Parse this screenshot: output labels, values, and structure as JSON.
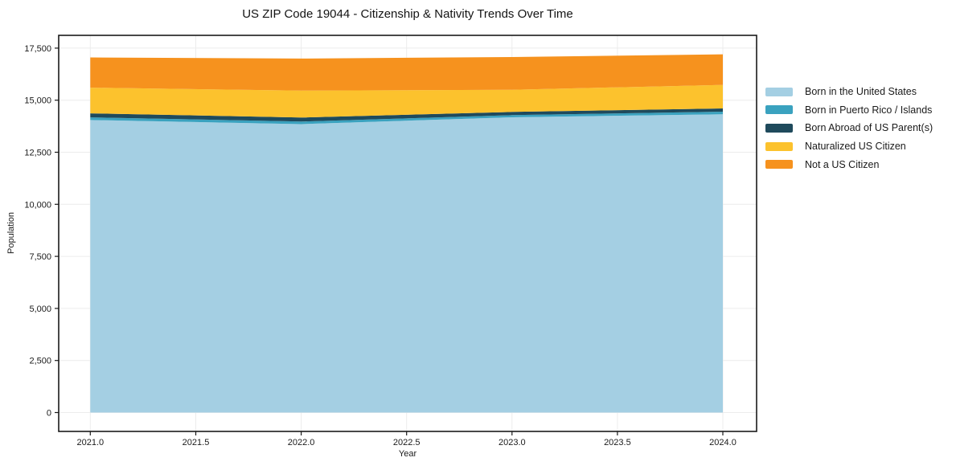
{
  "title": "US ZIP Code 19044 - Citizenship & Nativity Trends Over Time",
  "chart_data": {
    "type": "area",
    "stacked": true,
    "title": "US ZIP Code 19044 - Citizenship & Nativity Trends Over Time",
    "xlabel": "Year",
    "ylabel": "Population",
    "x": [
      2021,
      2022,
      2023,
      2024
    ],
    "series": [
      {
        "name": "Born in the United States",
        "color": "#a4cfe3",
        "values": [
          14050,
          13850,
          14180,
          14325
        ]
      },
      {
        "name": "Born in Puerto Rico / Islands",
        "color": "#3aa2bf",
        "values": [
          125,
          125,
          105,
          125
        ]
      },
      {
        "name": "Born Abroad of US Parent(s)",
        "color": "#1f4a5c",
        "values": [
          195,
          195,
          155,
          155
        ]
      },
      {
        "name": "Naturalized US Citizen",
        "color": "#fcc22d",
        "values": [
          1235,
          1290,
          1065,
          1130
        ]
      },
      {
        "name": "Not a US Citizen",
        "color": "#f6921e",
        "values": [
          1450,
          1540,
          1570,
          1470
        ]
      }
    ],
    "totals": [
      17055,
      17000,
      17075,
      17205
    ],
    "x_ticks": [
      2021.0,
      2021.5,
      2022.0,
      2022.5,
      2023.0,
      2023.5,
      2024.0
    ],
    "x_tick_labels": [
      "2021.0",
      "2021.5",
      "2022.0",
      "2022.5",
      "2023.0",
      "2023.5",
      "2024.0"
    ],
    "y_ticks": [
      0,
      2500,
      5000,
      7500,
      10000,
      12500,
      15000,
      17500
    ],
    "y_tick_labels": [
      "0",
      "2,500",
      "5,000",
      "7,500",
      "10,000",
      "12,500",
      "15,000",
      "17,500"
    ],
    "xlim": [
      2020.85,
      2024.16
    ],
    "ylim": [
      -905,
      18115
    ],
    "grid": true,
    "legend_position": "right",
    "text_color": "#1a1a1a",
    "grid_color": "#ececec"
  }
}
